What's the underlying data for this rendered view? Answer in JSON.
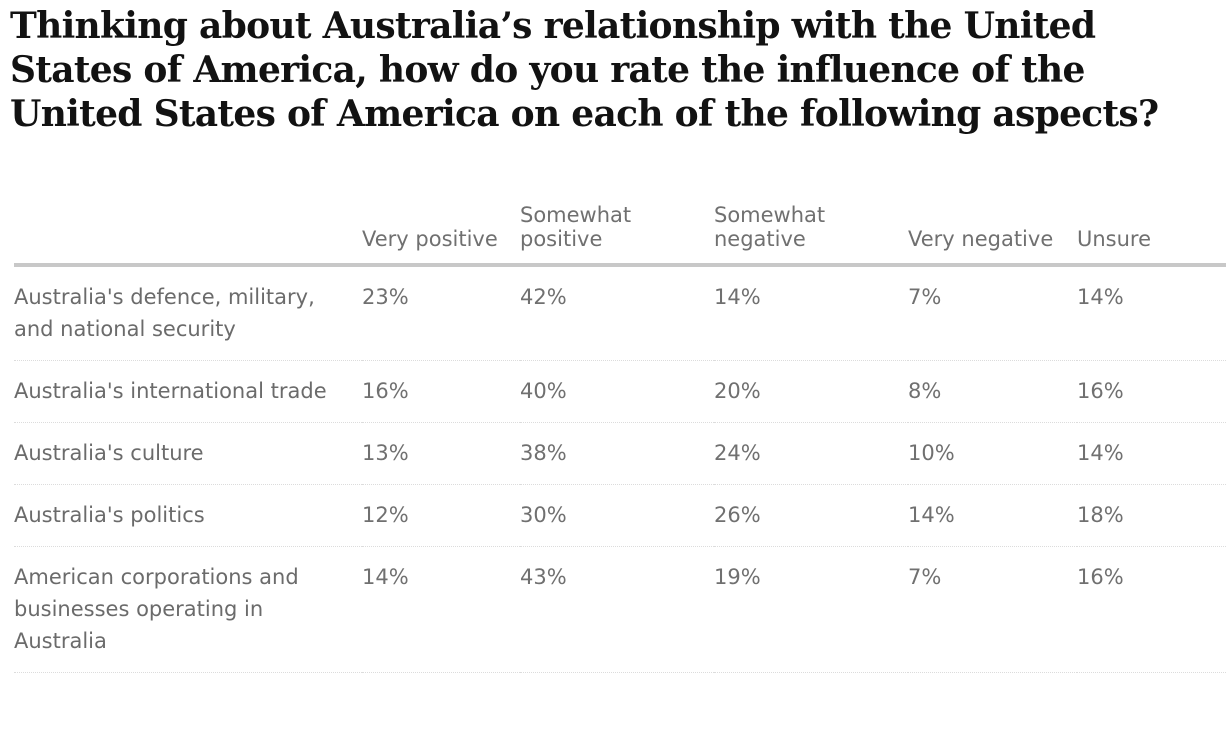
{
  "title": "Thinking about Australia’s relationship with the United States of America, how do you rate the influence of the United States of America on each of the following aspects?",
  "colors": {
    "title": "#121212",
    "text": "#707070",
    "header_rule": "#c8c8c8",
    "row_rule": "#dcdcdc"
  },
  "chart_data": {
    "type": "table",
    "title": "Thinking about Australia’s relationship with the United States of America, how do you rate the influence of the United States of America on each of the following aspects?",
    "columns": [
      "",
      "Very positive",
      "Somewhat positive",
      "Somewhat negative",
      "Very negative",
      "Unsure"
    ],
    "rows": [
      {
        "label": "Australia's defence, military, and national security",
        "values": [
          "23%",
          "42%",
          "14%",
          "7%",
          "14%"
        ]
      },
      {
        "label": "Australia's international trade",
        "values": [
          "16%",
          "40%",
          "20%",
          "8%",
          "16%"
        ]
      },
      {
        "label": "Australia's culture",
        "values": [
          "13%",
          "38%",
          "24%",
          "10%",
          "14%"
        ]
      },
      {
        "label": "Australia's politics",
        "values": [
          "12%",
          "30%",
          "26%",
          "14%",
          "18%"
        ]
      },
      {
        "label": "American corporations and businesses operating in Australia",
        "values": [
          "14%",
          "43%",
          "19%",
          "7%",
          "16%"
        ]
      }
    ]
  }
}
